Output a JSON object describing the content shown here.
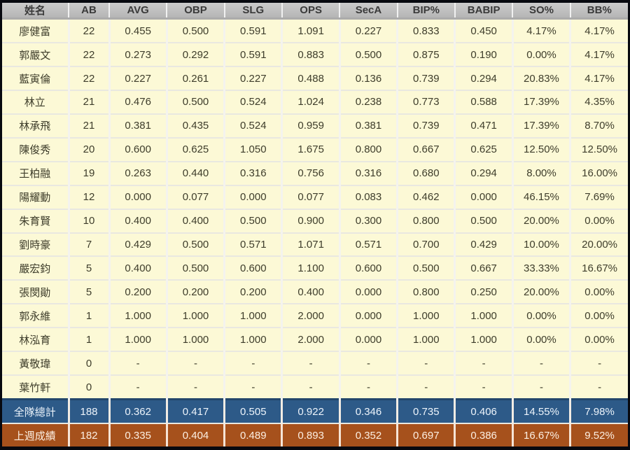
{
  "table": {
    "columns": [
      "姓名",
      "AB",
      "AVG",
      "OBP",
      "SLG",
      "OPS",
      "SecA",
      "BIP%",
      "BABIP",
      "SO%",
      "BB%"
    ],
    "rows": [
      [
        "廖健富",
        "22",
        "0.455",
        "0.500",
        "0.591",
        "1.091",
        "0.227",
        "0.833",
        "0.450",
        "4.17%",
        "4.17%"
      ],
      [
        "郭嚴文",
        "22",
        "0.273",
        "0.292",
        "0.591",
        "0.883",
        "0.500",
        "0.875",
        "0.190",
        "0.00%",
        "4.17%"
      ],
      [
        "藍寅倫",
        "22",
        "0.227",
        "0.261",
        "0.227",
        "0.488",
        "0.136",
        "0.739",
        "0.294",
        "20.83%",
        "4.17%"
      ],
      [
        "林立",
        "21",
        "0.476",
        "0.500",
        "0.524",
        "1.024",
        "0.238",
        "0.773",
        "0.588",
        "17.39%",
        "4.35%"
      ],
      [
        "林承飛",
        "21",
        "0.381",
        "0.435",
        "0.524",
        "0.959",
        "0.381",
        "0.739",
        "0.471",
        "17.39%",
        "8.70%"
      ],
      [
        "陳俊秀",
        "20",
        "0.600",
        "0.625",
        "1.050",
        "1.675",
        "0.800",
        "0.667",
        "0.625",
        "12.50%",
        "12.50%"
      ],
      [
        "王柏融",
        "19",
        "0.263",
        "0.440",
        "0.316",
        "0.756",
        "0.316",
        "0.680",
        "0.294",
        "8.00%",
        "16.00%"
      ],
      [
        "陽耀動",
        "12",
        "0.000",
        "0.077",
        "0.000",
        "0.077",
        "0.083",
        "0.462",
        "0.000",
        "46.15%",
        "7.69%"
      ],
      [
        "朱育賢",
        "10",
        "0.400",
        "0.400",
        "0.500",
        "0.900",
        "0.300",
        "0.800",
        "0.500",
        "20.00%",
        "0.00%"
      ],
      [
        "劉時豪",
        "7",
        "0.429",
        "0.500",
        "0.571",
        "1.071",
        "0.571",
        "0.700",
        "0.429",
        "10.00%",
        "20.00%"
      ],
      [
        "嚴宏鈞",
        "5",
        "0.400",
        "0.500",
        "0.600",
        "1.100",
        "0.600",
        "0.500",
        "0.667",
        "33.33%",
        "16.67%"
      ],
      [
        "張閔勛",
        "5",
        "0.200",
        "0.200",
        "0.200",
        "0.400",
        "0.000",
        "0.800",
        "0.250",
        "20.00%",
        "0.00%"
      ],
      [
        "郭永維",
        "1",
        "1.000",
        "1.000",
        "1.000",
        "2.000",
        "0.000",
        "1.000",
        "1.000",
        "0.00%",
        "0.00%"
      ],
      [
        "林泓育",
        "1",
        "1.000",
        "1.000",
        "1.000",
        "2.000",
        "0.000",
        "1.000",
        "1.000",
        "0.00%",
        "0.00%"
      ],
      [
        "黃敬瑋",
        "0",
        "-",
        "-",
        "-",
        "-",
        "-",
        "-",
        "-",
        "-",
        "-"
      ],
      [
        "葉竹軒",
        "0",
        "-",
        "-",
        "-",
        "-",
        "-",
        "-",
        "-",
        "-",
        "-"
      ]
    ],
    "totals": [
      [
        "全隊總計",
        "188",
        "0.362",
        "0.417",
        "0.505",
        "0.922",
        "0.346",
        "0.735",
        "0.406",
        "14.55%",
        "7.98%"
      ],
      [
        "上週成績",
        "182",
        "0.335",
        "0.404",
        "0.489",
        "0.893",
        "0.352",
        "0.697",
        "0.386",
        "16.67%",
        "9.52%"
      ]
    ]
  },
  "colors": {
    "frame": "#07090f",
    "header_bg": "#c0c0c0",
    "row_bg": "#fcf9d6",
    "total_bg": "#2d5a88",
    "lastweek_bg": "#a6511c"
  }
}
